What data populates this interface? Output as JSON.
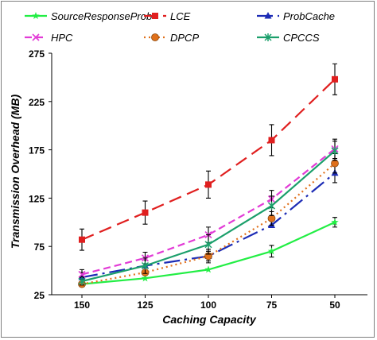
{
  "chart_data": {
    "type": "line",
    "title": "",
    "xlabel": "Caching Capacity",
    "ylabel": "Transmission Overhead (MB)",
    "categories": [
      "150",
      "125",
      "100",
      "75",
      "50"
    ],
    "ylim": [
      25,
      275
    ],
    "yticks": [
      "25",
      "75",
      "125",
      "175",
      "225",
      "275"
    ],
    "grid": false,
    "legend_position": "top",
    "series": [
      {
        "name": "SourceResponseProb",
        "color": "#22ee44",
        "dash": "",
        "marker": "star",
        "values": [
          36,
          42,
          51,
          70,
          100
        ],
        "errors": [
          0,
          0,
          0,
          6,
          5
        ]
      },
      {
        "name": "LCE",
        "color": "#e01f1f",
        "dash": "16,8",
        "marker": "square",
        "values": [
          82,
          110,
          139,
          185,
          248
        ],
        "errors": [
          11,
          12,
          14,
          16,
          16
        ]
      },
      {
        "name": "ProbCache",
        "color": "#1c2bb5",
        "dash": "20,6,3,6",
        "marker": "triangle",
        "values": [
          43,
          55,
          65,
          97,
          151
        ],
        "errors": [
          5,
          6,
          7,
          0,
          10
        ]
      },
      {
        "name": "HPC",
        "color": "#e23bd6",
        "dash": "9,5",
        "marker": "cross",
        "values": [
          46,
          63,
          87,
          124,
          176
        ],
        "errors": [
          5,
          6,
          8,
          9,
          10
        ]
      },
      {
        "name": "DPCP",
        "color": "#e0701a",
        "dash": "2,4",
        "marker": "circle",
        "values": [
          36,
          48,
          65,
          104,
          161
        ],
        "errors": [
          0,
          0,
          5,
          7,
          10
        ]
      },
      {
        "name": "CPCCS",
        "color": "#1b9f6b",
        "dash": "",
        "marker": "asterisk",
        "values": [
          39,
          55,
          77,
          117,
          174
        ],
        "errors": [
          4,
          8,
          10,
          10,
          10
        ]
      }
    ]
  }
}
